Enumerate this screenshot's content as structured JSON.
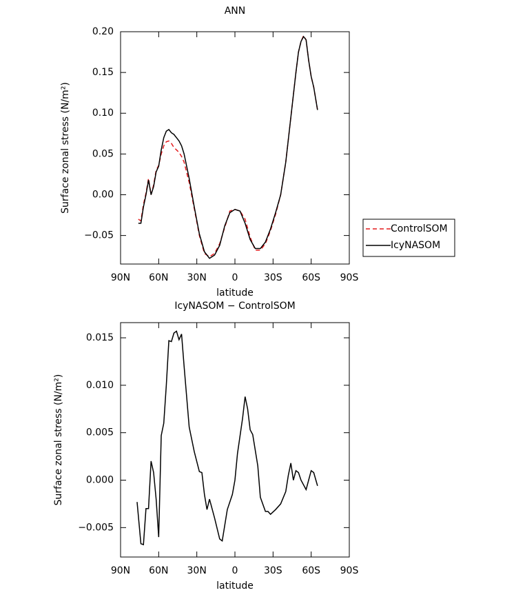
{
  "chart_data": [
    {
      "type": "line",
      "title": "ANN",
      "x_label": "latitude",
      "y_label": "Surface zonal stress (N/m²)",
      "xlim": [
        90,
        -90
      ],
      "xticks": [
        {
          "value": 90,
          "label": "90N"
        },
        {
          "value": 60,
          "label": "60N"
        },
        {
          "value": 30,
          "label": "30N"
        },
        0,
        {
          "value": -30,
          "label": "30S"
        },
        {
          "value": -60,
          "label": "60S"
        },
        {
          "value": -90,
          "label": "90S"
        }
      ],
      "ylim": [
        -0.085,
        0.2
      ],
      "yticks": [
        {
          "value": -0.05,
          "label": "−0.05"
        },
        {
          "value": 0,
          "label": "0.00"
        },
        {
          "value": 0.05,
          "label": "0.05"
        },
        {
          "value": 0.1,
          "label": "0.10"
        },
        {
          "value": 0.15,
          "label": "0.15"
        },
        {
          "value": 0.2,
          "label": "0.20"
        }
      ],
      "legend": "right",
      "x": [
        76,
        74,
        72,
        70,
        68,
        66,
        64,
        62,
        60,
        58,
        56,
        54,
        52,
        50,
        48,
        46,
        44,
        42,
        40,
        36,
        32,
        28,
        24,
        20,
        16,
        12,
        8,
        4,
        0,
        -4,
        -8,
        -12,
        -16,
        -20,
        -24,
        -28,
        -32,
        -36,
        -40,
        -44,
        -48,
        -50,
        -52,
        -54,
        -56,
        -58,
        -60,
        -62,
        -65
      ],
      "series": [
        {
          "name": "ControlSOM",
          "color": "#e41a1c",
          "line_style": "dashed",
          "values": [
            -0.03,
            -0.032,
            -0.012,
            0.002,
            0.02,
            0.0,
            0.012,
            0.03,
            0.036,
            0.05,
            0.06,
            0.065,
            0.066,
            0.063,
            0.058,
            0.055,
            0.052,
            0.047,
            0.04,
            0.015,
            -0.017,
            -0.05,
            -0.072,
            -0.076,
            -0.072,
            -0.06,
            -0.04,
            -0.02,
            -0.018,
            -0.02,
            -0.03,
            -0.052,
            -0.068,
            -0.068,
            -0.06,
            -0.044,
            -0.024,
            0.0,
            0.04,
            0.095,
            0.15,
            0.175,
            0.188,
            0.195,
            0.19,
            0.165,
            0.145,
            0.132,
            0.104
          ]
        },
        {
          "name": "IcyNASOM",
          "color": "#000000",
          "line_style": "solid",
          "values": [
            -0.035,
            -0.035,
            -0.015,
            0.0,
            0.018,
            0.0,
            0.01,
            0.028,
            0.035,
            0.055,
            0.07,
            0.078,
            0.08,
            0.076,
            0.074,
            0.07,
            0.066,
            0.06,
            0.05,
            0.02,
            -0.015,
            -0.048,
            -0.07,
            -0.078,
            -0.074,
            -0.062,
            -0.038,
            -0.022,
            -0.018,
            -0.02,
            -0.035,
            -0.055,
            -0.066,
            -0.066,
            -0.058,
            -0.042,
            -0.022,
            0.0,
            0.04,
            0.095,
            0.15,
            0.175,
            0.188,
            0.194,
            0.19,
            0.165,
            0.145,
            0.132,
            0.104
          ]
        }
      ]
    },
    {
      "type": "line",
      "title": "IcyNASOM − ControlSOM",
      "x_label": "latitude",
      "y_label": "Surface zonal stress (N/m²)",
      "xlim": [
        90,
        -90
      ],
      "xticks": [
        {
          "value": 90,
          "label": "90N"
        },
        {
          "value": 60,
          "label": "60N"
        },
        {
          "value": 30,
          "label": "30N"
        },
        0,
        {
          "value": -30,
          "label": "30S"
        },
        {
          "value": -60,
          "label": "60S"
        },
        {
          "value": -90,
          "label": "90S"
        }
      ],
      "ylim": [
        -0.0081,
        0.0166
      ],
      "yticks": [
        {
          "value": -0.005,
          "label": "−0.005"
        },
        {
          "value": 0,
          "label": "0.000"
        },
        {
          "value": 0.005,
          "label": "0.005"
        },
        {
          "value": 0.01,
          "label": "0.010"
        },
        {
          "value": 0.015,
          "label": "0.015"
        }
      ],
      "x": [
        77,
        74,
        72,
        70,
        68,
        66,
        64,
        62,
        60,
        58,
        56,
        54,
        52,
        50,
        48,
        46,
        44,
        42,
        40,
        36,
        32,
        28,
        26,
        24,
        22,
        20,
        16,
        12,
        10,
        6,
        2,
        0,
        -2,
        -6,
        -8,
        -10,
        -12,
        -14,
        -18,
        -20,
        -24,
        -26,
        -28,
        -32,
        -36,
        -40,
        -42,
        -44,
        -46,
        -48,
        -50,
        -52,
        -56,
        -58,
        -60,
        -62,
        -65
      ],
      "series": [
        {
          "color": "#000000",
          "line_style": "solid",
          "values": [
            -0.0023,
            -0.0067,
            -0.0068,
            -0.003,
            -0.003,
            0.002,
            0.0008,
            -0.002,
            -0.006,
            0.0047,
            0.006,
            0.01,
            0.0147,
            0.0146,
            0.0155,
            0.0157,
            0.0148,
            0.0154,
            0.012,
            0.0056,
            0.003,
            0.0009,
            0.0008,
            -0.0015,
            -0.0031,
            -0.002,
            -0.004,
            -0.0062,
            -0.0064,
            -0.0031,
            -0.0015,
            0.0,
            0.0028,
            0.0065,
            0.0088,
            0.0075,
            0.0053,
            0.0048,
            0.0015,
            -0.0018,
            -0.0033,
            -0.0033,
            -0.0036,
            -0.0031,
            -0.0025,
            -0.0012,
            0.0005,
            0.0018,
            0.0,
            0.001,
            0.0008,
            0.0,
            -0.001,
            0.0,
            0.001,
            0.0008,
            -0.0006
          ]
        }
      ]
    }
  ]
}
